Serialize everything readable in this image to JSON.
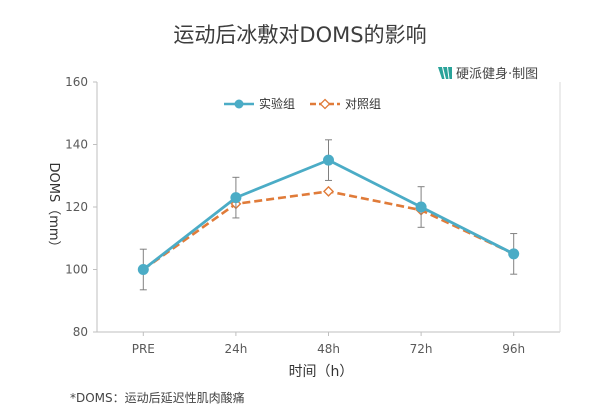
{
  "chart_data": {
    "type": "line",
    "title": "运动后冰敷对DOMS的影响",
    "credit": "硬派健身·制图",
    "categories": [
      "PRE",
      "24h",
      "48h",
      "72h",
      "96h"
    ],
    "xlabel": "时间（h）",
    "ylabel": "DOMS（mm）",
    "ylim": [
      80,
      160
    ],
    "yticks": [
      80,
      100,
      120,
      140,
      160
    ],
    "grid": false,
    "legend_position": "top-center",
    "series": [
      {
        "name": "实验组",
        "color": "#4bacc6",
        "line_style": "solid",
        "marker": "circle",
        "values": [
          100,
          123,
          135,
          120,
          105
        ],
        "error": [
          6.5,
          6.5,
          6.5,
          6.5,
          6.5
        ]
      },
      {
        "name": "对照组",
        "color": "#e07b39",
        "line_style": "dashed",
        "marker": "diamond-open",
        "values": [
          100,
          121,
          125,
          119,
          105
        ]
      }
    ],
    "footnote": "*DOMS：运动后延迟性肌肉酸痛"
  }
}
